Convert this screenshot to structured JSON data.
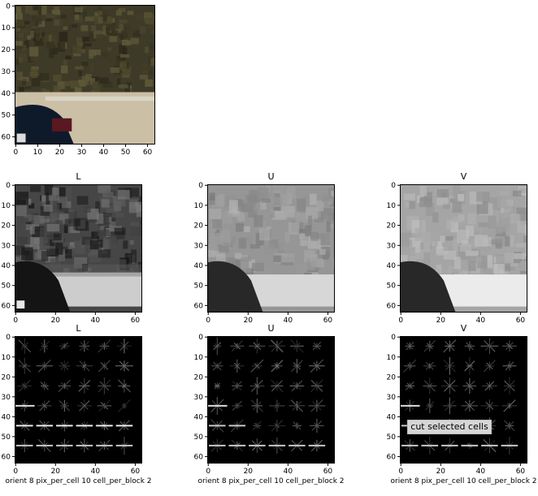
{
  "figure": {
    "tooltip": "cut selected cells"
  },
  "colors": {
    "sky_top": "#4a4636",
    "foliage": "#3d3a28",
    "car": "#0e1a2a",
    "tail_light": "#5a1820",
    "road": "#cbbfa6",
    "rail": "#d9d4c4",
    "hog_bg": "#000000"
  },
  "chart_data": [
    {
      "type": "image",
      "panel": "original",
      "title": "",
      "xticks": [
        0,
        10,
        20,
        30,
        40,
        50,
        60
      ],
      "yticks": [
        0,
        10,
        20,
        30,
        40,
        50,
        60
      ],
      "xlim": [
        0,
        63
      ],
      "ylim": [
        0,
        63
      ],
      "xlabel": ""
    },
    {
      "type": "image",
      "panel": "channel",
      "title": "L",
      "xticks": [
        0,
        20,
        40,
        60
      ],
      "yticks": [
        0,
        10,
        20,
        30,
        40,
        50,
        60
      ],
      "xlim": [
        0,
        63
      ],
      "ylim": [
        0,
        63
      ],
      "xlabel": ""
    },
    {
      "type": "image",
      "panel": "channel",
      "title": "U",
      "xticks": [
        0,
        20,
        40,
        60
      ],
      "yticks": [
        0,
        10,
        20,
        30,
        40,
        50,
        60
      ],
      "xlim": [
        0,
        63
      ],
      "ylim": [
        0,
        63
      ],
      "xlabel": ""
    },
    {
      "type": "image",
      "panel": "channel",
      "title": "V",
      "xticks": [
        0,
        20,
        40,
        60
      ],
      "yticks": [
        0,
        10,
        20,
        30,
        40,
        50,
        60
      ],
      "xlim": [
        0,
        63
      ],
      "ylim": [
        0,
        63
      ],
      "xlabel": ""
    },
    {
      "type": "image",
      "panel": "hog",
      "title": "L",
      "xticks": [
        0,
        20,
        40,
        60
      ],
      "yticks": [
        0,
        10,
        20,
        30,
        40,
        50,
        60
      ],
      "xlim": [
        0,
        63
      ],
      "ylim": [
        0,
        63
      ],
      "xlabel": "orient 8 pix_per_cell 10 cell_per_block 2"
    },
    {
      "type": "image",
      "panel": "hog",
      "title": "U",
      "xticks": [
        0,
        20,
        40,
        60
      ],
      "yticks": [
        0,
        10,
        20,
        30,
        40,
        50,
        60
      ],
      "xlim": [
        0,
        63
      ],
      "ylim": [
        0,
        63
      ],
      "xlabel": "orient 8 pix_per_cell 10 cell_per_block 2"
    },
    {
      "type": "image",
      "panel": "hog",
      "title": "V",
      "xticks": [
        0,
        20,
        40,
        60
      ],
      "yticks": [
        0,
        10,
        20,
        30,
        40,
        50,
        60
      ],
      "xlim": [
        0,
        63
      ],
      "ylim": [
        0,
        63
      ],
      "xlabel": "orient 8 pix_per_cell 10 cell_per_block 2"
    }
  ]
}
